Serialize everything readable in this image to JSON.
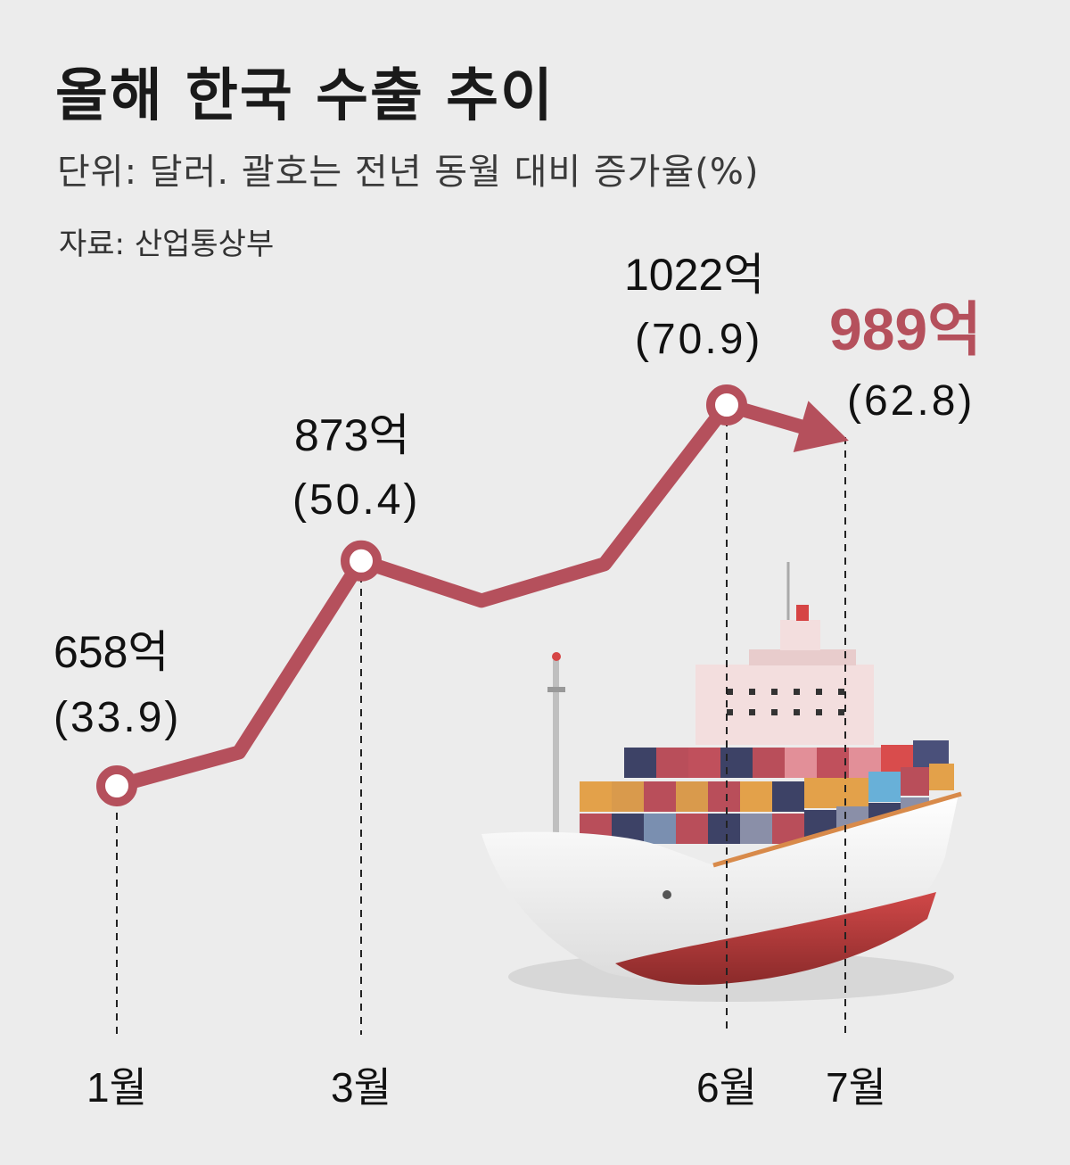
{
  "header": {
    "title": "올해 한국 수출 추이",
    "subtitle": "단위: 달러. 괄호는 전년 동월 대비 증가율(%)",
    "source": "자료: 산업통상부"
  },
  "colors": {
    "line": "#b5505c",
    "highlight": "#b5505c",
    "background": "#ececec"
  },
  "chart_data": {
    "type": "line",
    "title": "올해 한국 수출 추이",
    "unit_note": "단위: 달러. 괄호는 전년 동월 대비 증가율(%)",
    "x": [
      1,
      2,
      3,
      4,
      5,
      6,
      7
    ],
    "tick_labels": {
      "1": "1월",
      "3": "3월",
      "6": "6월",
      "7": "7월"
    },
    "series": [
      {
        "values": [
          658,
          690,
          873,
          835,
          870,
          1022,
          989
        ]
      }
    ],
    "annotations": [
      {
        "x": 1,
        "value": "658억",
        "change": "(33.9)",
        "highlight": false
      },
      {
        "x": 3,
        "value": "873억",
        "change": "(50.4)",
        "highlight": false
      },
      {
        "x": 6,
        "value": "1022억",
        "change": "(70.9)",
        "highlight": false
      },
      {
        "x": 7,
        "value": "989억",
        "change": "(62.8)",
        "highlight": true
      }
    ],
    "legend": "none",
    "grid": false
  }
}
